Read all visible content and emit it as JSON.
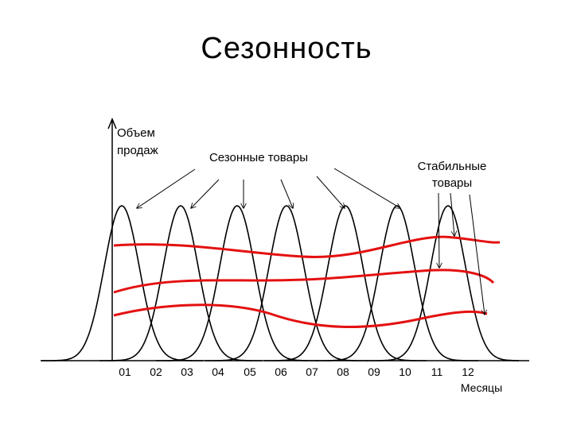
{
  "slide": {
    "title": "Сезонность"
  },
  "chart_data": {
    "type": "line",
    "ylabel_lines": [
      "Объем",
      "продаж"
    ],
    "xlabel": "Месяцы",
    "x_ticks": [
      "01",
      "02",
      "03",
      "04",
      "05",
      "06",
      "07",
      "08",
      "09",
      "10",
      "11",
      "12"
    ],
    "annotations": {
      "seasonal": "Сезонные товары",
      "stable_lines": [
        "Стабильные",
        "товары"
      ]
    },
    "seasonal_peaks_near_ticks": [
      "01",
      "03",
      "05",
      "07",
      "09",
      "11"
    ],
    "colors": {
      "seasonal": "#000000",
      "stable": "#e41010",
      "axis": "#000000"
    },
    "grid": false,
    "legend": "none"
  }
}
